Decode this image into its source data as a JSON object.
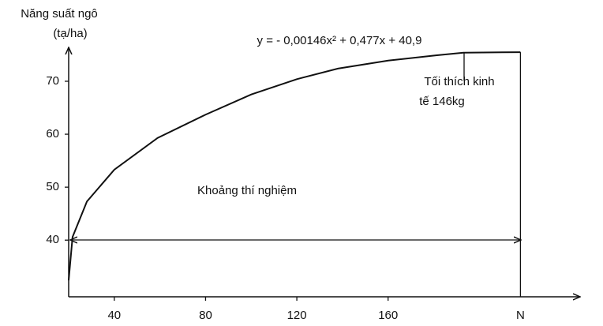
{
  "chart_data": {
    "type": "line",
    "equation": "y = - 0,00146x² + 0,477x + 40,9",
    "y_label": [
      "Năng suất ngô",
      "(tạ/ha)"
    ],
    "annotations": [
      "Tối thích kinh",
      "tế 146kg",
      "Khoảng thí nghiệm"
    ],
    "x": [
      20,
      21.7,
      28,
      40,
      59,
      80,
      100,
      120,
      138,
      160,
      181,
      193,
      218
    ],
    "series": [
      {
        "color": "#111111",
        "values": [
          32.4,
          40.6,
          47.3,
          53.3,
          59.3,
          63.7,
          67.5,
          70.4,
          72.4,
          73.9,
          74.9,
          75.4,
          75.5
        ]
      }
    ],
    "xlim": [
      20,
      240
    ],
    "ylim": [
      29.3,
      77
    ],
    "xticks": [
      40,
      80,
      120,
      160,
      {
        "value": 218,
        "label": "N"
      }
    ],
    "yticks": [
      40,
      50,
      60,
      70
    ]
  }
}
